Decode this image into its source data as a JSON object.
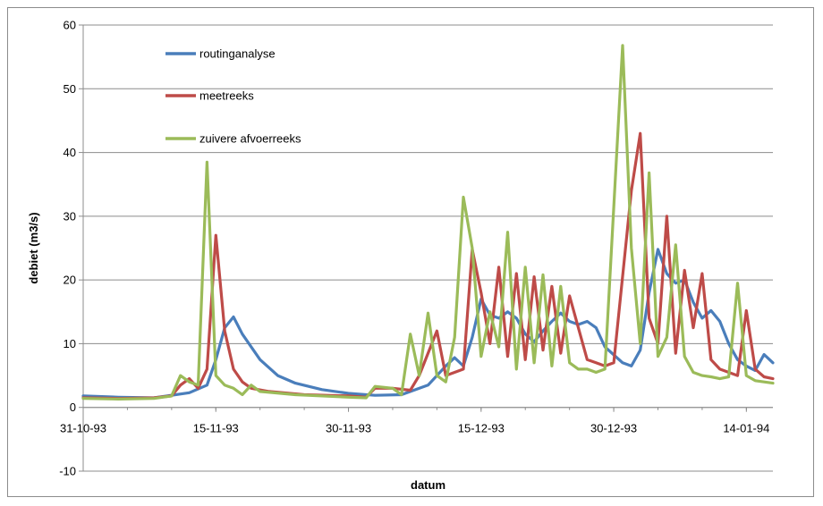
{
  "chart_data": {
    "type": "line",
    "title": "",
    "xlabel": "datum",
    "ylabel": "debiet (m3/s)",
    "ylim": [
      -10,
      60
    ],
    "yticks": [
      -10,
      0,
      10,
      20,
      30,
      40,
      50,
      60
    ],
    "xlim": [
      "1993-10-31",
      "1994-01-17"
    ],
    "xticks": [
      {
        "date": "1993-10-31",
        "label": "31-10-93"
      },
      {
        "date": "1993-11-15",
        "label": "15-11-93"
      },
      {
        "date": "1993-11-30",
        "label": "30-11-93"
      },
      {
        "date": "1993-12-15",
        "label": "15-12-93"
      },
      {
        "date": "1993-12-30",
        "label": "30-12-93"
      },
      {
        "date": "1994-01-14",
        "label": "14-01-94"
      }
    ],
    "grid": true,
    "legend_position": "top-left",
    "series": [
      {
        "name": "routinganalyse",
        "color": "#4a7ebb",
        "points": [
          [
            "1993-10-31",
            1.8
          ],
          [
            "1993-11-04",
            1.6
          ],
          [
            "1993-11-08",
            1.5
          ],
          [
            "1993-11-12",
            2.3
          ],
          [
            "1993-11-14",
            3.5
          ],
          [
            "1993-11-15",
            7.5
          ],
          [
            "1993-11-16",
            12.5
          ],
          [
            "1993-11-17",
            14.2
          ],
          [
            "1993-11-18",
            11.5
          ],
          [
            "1993-11-20",
            7.5
          ],
          [
            "1993-11-22",
            5.0
          ],
          [
            "1993-11-24",
            3.8
          ],
          [
            "1993-11-27",
            2.8
          ],
          [
            "1993-11-30",
            2.2
          ],
          [
            "1993-12-03",
            1.9
          ],
          [
            "1993-12-06",
            2.0
          ],
          [
            "1993-12-09",
            3.5
          ],
          [
            "1993-12-11",
            6.5
          ],
          [
            "1993-12-12",
            7.8
          ],
          [
            "1993-12-13",
            6.5
          ],
          [
            "1993-12-14",
            11.0
          ],
          [
            "1993-12-15",
            17.0
          ],
          [
            "1993-12-16",
            14.5
          ],
          [
            "1993-12-17",
            14.0
          ],
          [
            "1993-12-18",
            15.0
          ],
          [
            "1993-12-19",
            14.0
          ],
          [
            "1993-12-20",
            11.5
          ],
          [
            "1993-12-21",
            10.3
          ],
          [
            "1993-12-22",
            12.0
          ],
          [
            "1993-12-23",
            13.5
          ],
          [
            "1993-12-24",
            14.8
          ],
          [
            "1993-12-25",
            13.5
          ],
          [
            "1993-12-26",
            13.0
          ],
          [
            "1993-12-27",
            13.5
          ],
          [
            "1993-12-28",
            12.5
          ],
          [
            "1993-12-29",
            9.5
          ],
          [
            "1993-12-31",
            7.0
          ],
          [
            "1994-01-01",
            6.5
          ],
          [
            "1994-01-02",
            9.0
          ],
          [
            "1994-01-03",
            18.0
          ],
          [
            "1994-01-04",
            24.8
          ],
          [
            "1994-01-05",
            21.0
          ],
          [
            "1994-01-06",
            19.5
          ],
          [
            "1994-01-07",
            20.0
          ],
          [
            "1994-01-08",
            16.5
          ],
          [
            "1994-01-09",
            14.0
          ],
          [
            "1994-01-10",
            15.2
          ],
          [
            "1994-01-11",
            13.5
          ],
          [
            "1994-01-12",
            10.0
          ],
          [
            "1994-01-13",
            7.5
          ],
          [
            "1994-01-14",
            6.5
          ],
          [
            "1994-01-15",
            5.8
          ],
          [
            "1994-01-16",
            8.3
          ],
          [
            "1994-01-17",
            7.0
          ]
        ]
      },
      {
        "name": "meetreeks",
        "color": "#be4b48",
        "points": [
          [
            "1993-10-31",
            1.5
          ],
          [
            "1993-11-04",
            1.4
          ],
          [
            "1993-11-08",
            1.5
          ],
          [
            "1993-11-10",
            1.8
          ],
          [
            "1993-11-11",
            3.5
          ],
          [
            "1993-11-12",
            4.5
          ],
          [
            "1993-11-13",
            3.0
          ],
          [
            "1993-11-14",
            6.0
          ],
          [
            "1993-11-15",
            27.0
          ],
          [
            "1993-11-16",
            12.0
          ],
          [
            "1993-11-17",
            6.0
          ],
          [
            "1993-11-18",
            4.0
          ],
          [
            "1993-11-19",
            3.0
          ],
          [
            "1993-11-21",
            2.5
          ],
          [
            "1993-11-25",
            2.0
          ],
          [
            "1993-11-30",
            1.8
          ],
          [
            "1993-12-02",
            1.6
          ],
          [
            "1993-12-03",
            3.0
          ],
          [
            "1993-12-05",
            3.0
          ],
          [
            "1993-12-07",
            2.7
          ],
          [
            "1993-12-08",
            5.0
          ],
          [
            "1993-12-09",
            8.5
          ],
          [
            "1993-12-10",
            12.0
          ],
          [
            "1993-12-11",
            5.0
          ],
          [
            "1993-12-12",
            5.5
          ],
          [
            "1993-12-13",
            6.0
          ],
          [
            "1993-12-14",
            24.8
          ],
          [
            "1993-12-15",
            18.0
          ],
          [
            "1993-12-16",
            10.0
          ],
          [
            "1993-12-17",
            22.0
          ],
          [
            "1993-12-18",
            8.0
          ],
          [
            "1993-12-19",
            21.0
          ],
          [
            "1993-12-20",
            7.5
          ],
          [
            "1993-12-21",
            20.5
          ],
          [
            "1993-12-22",
            9.0
          ],
          [
            "1993-12-23",
            19.0
          ],
          [
            "1993-12-24",
            8.5
          ],
          [
            "1993-12-25",
            17.5
          ],
          [
            "1993-12-26",
            12.5
          ],
          [
            "1993-12-27",
            7.5
          ],
          [
            "1993-12-28",
            7.0
          ],
          [
            "1993-12-29",
            6.5
          ],
          [
            "1993-12-30",
            7.0
          ],
          [
            "1994-01-01",
            34.0
          ],
          [
            "1994-01-02",
            43.0
          ],
          [
            "1994-01-03",
            14.0
          ],
          [
            "1994-01-04",
            10.0
          ],
          [
            "1994-01-05",
            30.0
          ],
          [
            "1994-01-06",
            8.5
          ],
          [
            "1994-01-07",
            21.5
          ],
          [
            "1994-01-08",
            12.5
          ],
          [
            "1994-01-09",
            21.0
          ],
          [
            "1994-01-10",
            7.5
          ],
          [
            "1994-01-11",
            6.0
          ],
          [
            "1994-01-12",
            5.5
          ],
          [
            "1994-01-13",
            5.0
          ],
          [
            "1994-01-14",
            15.2
          ],
          [
            "1994-01-15",
            6.0
          ],
          [
            "1994-01-16",
            4.8
          ],
          [
            "1994-01-17",
            4.5
          ]
        ]
      },
      {
        "name": "zuivere afvoerreeks",
        "color": "#9bbb59",
        "points": [
          [
            "1993-10-31",
            1.4
          ],
          [
            "1993-11-04",
            1.3
          ],
          [
            "1993-11-08",
            1.4
          ],
          [
            "1993-11-10",
            1.8
          ],
          [
            "1993-11-11",
            5.0
          ],
          [
            "1993-11-12",
            4.0
          ],
          [
            "1993-11-13",
            3.5
          ],
          [
            "1993-11-14",
            38.5
          ],
          [
            "1993-11-15",
            5.0
          ],
          [
            "1993-11-16",
            3.5
          ],
          [
            "1993-11-17",
            3.0
          ],
          [
            "1993-11-18",
            2.0
          ],
          [
            "1993-11-19",
            3.5
          ],
          [
            "1993-11-20",
            2.5
          ],
          [
            "1993-11-24",
            2.0
          ],
          [
            "1993-11-30",
            1.6
          ],
          [
            "1993-12-02",
            1.5
          ],
          [
            "1993-12-03",
            3.3
          ],
          [
            "1993-12-05",
            3.0
          ],
          [
            "1993-12-06",
            2.0
          ],
          [
            "1993-12-07",
            11.5
          ],
          [
            "1993-12-08",
            5.0
          ],
          [
            "1993-12-09",
            14.8
          ],
          [
            "1993-12-10",
            5.0
          ],
          [
            "1993-12-11",
            4.0
          ],
          [
            "1993-12-12",
            11.0
          ],
          [
            "1993-12-13",
            33.0
          ],
          [
            "1993-12-14",
            25.0
          ],
          [
            "1993-12-15",
            8.0
          ],
          [
            "1993-12-16",
            15.0
          ],
          [
            "1993-12-17",
            9.5
          ],
          [
            "1993-12-18",
            27.5
          ],
          [
            "1993-12-19",
            6.0
          ],
          [
            "1993-12-20",
            22.0
          ],
          [
            "1993-12-21",
            7.0
          ],
          [
            "1993-12-22",
            20.8
          ],
          [
            "1993-12-23",
            6.5
          ],
          [
            "1993-12-24",
            19.0
          ],
          [
            "1993-12-25",
            7.0
          ],
          [
            "1993-12-26",
            6.0
          ],
          [
            "1993-12-27",
            6.0
          ],
          [
            "1993-12-28",
            5.5
          ],
          [
            "1993-12-29",
            6.0
          ],
          [
            "1993-12-31",
            56.8
          ],
          [
            "1994-01-01",
            25.0
          ],
          [
            "1994-01-02",
            10.0
          ],
          [
            "1994-01-03",
            36.8
          ],
          [
            "1994-01-04",
            8.0
          ],
          [
            "1994-01-05",
            11.0
          ],
          [
            "1994-01-06",
            25.5
          ],
          [
            "1994-01-07",
            8.0
          ],
          [
            "1994-01-08",
            5.5
          ],
          [
            "1994-01-09",
            5.0
          ],
          [
            "1994-01-10",
            4.8
          ],
          [
            "1994-01-11",
            4.5
          ],
          [
            "1994-01-12",
            4.8
          ],
          [
            "1994-01-13",
            19.5
          ],
          [
            "1994-01-14",
            5.0
          ],
          [
            "1994-01-15",
            4.2
          ],
          [
            "1994-01-17",
            3.8
          ]
        ]
      }
    ]
  }
}
